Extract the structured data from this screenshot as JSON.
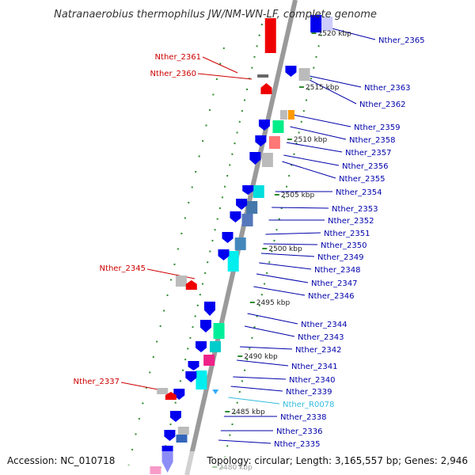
{
  "title": "Natranaerobius thermophilus JW/NM-WN-LF, complete genome",
  "footer": {
    "accession": "Accession: NC_010718",
    "topology": "Topology: circular; Length: 3,165,557 bp; Genes: 2,946"
  },
  "colors": {
    "backbone": "#9a9a9a",
    "dots": "#2e8b2e",
    "left_label": "#cc0000",
    "right_label": "#0000aa",
    "rna_label": "#33bbdd",
    "gene_blue": "#0000ee",
    "gene_red": "#ee0000"
  },
  "ticks": [
    "2520 kbp",
    "2515 kbp",
    "2510 kbp",
    "2505 kbp",
    "2500 kbp",
    "2495 kbp",
    "2490 kbp",
    "2485 kbp",
    "2480 kbp"
  ],
  "left_labels": [
    "Nther_2361",
    "Nther_2360",
    "Nther_2345",
    "Nther_2337"
  ],
  "right_labels": [
    "Nther_2365",
    "Nther_2363",
    "Nther_2362",
    "Nther_2359",
    "Nther_2358",
    "Nther_2357",
    "Nther_2356",
    "Nther_2355",
    "Nther_2354",
    "Nther_2353",
    "Nther_2352",
    "Nther_2351",
    "Nther_2350",
    "Nther_2349",
    "Nther_2348",
    "Nther_2347",
    "Nther_2346",
    "Nther_2344",
    "Nther_2343",
    "Nther_2342",
    "Nther_2341",
    "Nther_2340",
    "Nther_2339",
    "Nther_R0078",
    "Nther_2338",
    "Nther_2336",
    "Nther_2335"
  ]
}
